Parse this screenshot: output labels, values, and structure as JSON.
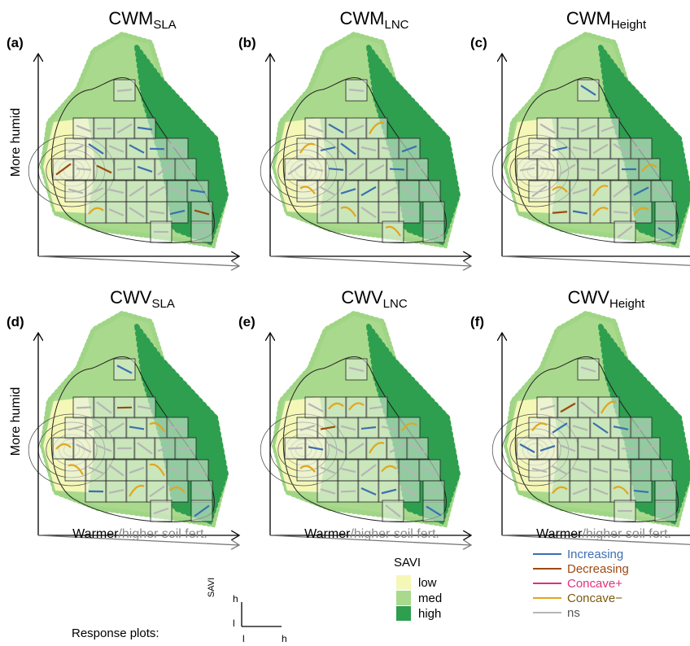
{
  "panels": [
    {
      "label": "(a)",
      "title": "CWM",
      "subscript": "SLA"
    },
    {
      "label": "(b)",
      "title": "CWM",
      "subscript": "LNC"
    },
    {
      "label": "(c)",
      "title": "CWM",
      "subscript": "Height"
    },
    {
      "label": "(d)",
      "title": "CWV",
      "subscript": "SLA"
    },
    {
      "label": "(e)",
      "title": "CWV",
      "subscript": "LNC"
    },
    {
      "label": "(f)",
      "title": "CWV",
      "subscript": "Height"
    }
  ],
  "y_axis_label": "More humid",
  "x_axis_label": {
    "main": "Warmer",
    "secondary": "/higher soil fert."
  },
  "legend_savi": {
    "title": "SAVI",
    "items": [
      {
        "label": "low",
        "color": "#f4f7b6"
      },
      {
        "label": "med",
        "color": "#a9d98c"
      },
      {
        "label": "high",
        "color": "#2e9e4f"
      }
    ]
  },
  "legend_trend": {
    "items": [
      {
        "label": "Increasing",
        "color": "#3b6fb0"
      },
      {
        "label": "Decreasing",
        "color": "#9c4a12"
      },
      {
        "label": "Concave+",
        "color": "#e0307f"
      },
      {
        "label": "Concave−",
        "color": "#e3a51c"
      },
      {
        "label": "ns",
        "color": "#b5b5b5"
      }
    ]
  },
  "response_key": {
    "caption": "Response plots:",
    "y_label": "SAVI",
    "y_high": "h",
    "y_low": "l",
    "x_low": "l",
    "x_high": "h"
  }
}
